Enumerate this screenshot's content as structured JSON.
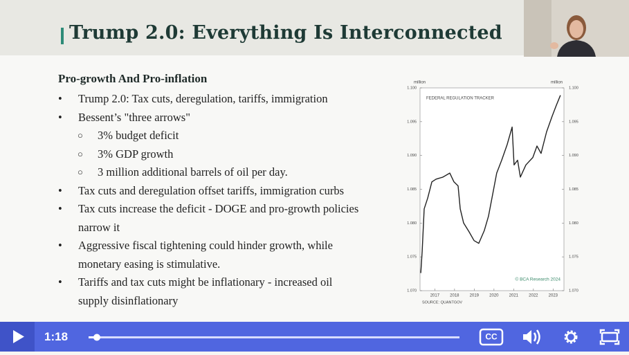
{
  "slide": {
    "title": "Trump 2.0: Everything Is Interconnected",
    "heading": "Pro-growth And Pro-inflation",
    "bullets": [
      {
        "level": 0,
        "text": "Trump 2.0: Tax cuts, deregulation, tariffs, immigration"
      },
      {
        "level": 0,
        "text": "Bessent’s \"three arrows\""
      },
      {
        "level": 1,
        "text": "3% budget deficit"
      },
      {
        "level": 1,
        "text": "3% GDP growth"
      },
      {
        "level": 1,
        "text": "3 million additional barrels of oil per day."
      },
      {
        "level": 0,
        "text": "Tax cuts and deregulation offset tariffs, immigration curbs"
      },
      {
        "level": 0,
        "text": "Tax cuts increase the deficit  - DOGE and pro-growth policies narrow it"
      },
      {
        "level": 0,
        "text": "Aggressive fiscal tightening could hinder growth, while monetary easing is stimulative."
      },
      {
        "level": 0,
        "text": "Tariffs and tax cuts might be inflationary - increased oil supply disinflationary"
      }
    ]
  },
  "chart_data": {
    "type": "line",
    "title": "FEDERAL REGULATION TRACKER",
    "y_unit_left": "million",
    "y_unit_right": "million",
    "source": "SOURCE: QUANTGOV",
    "credit": "© BCA Research 2024",
    "xlim": [
      2016.25,
      2023.55
    ],
    "xticks": [
      2017,
      2018,
      2019,
      2020,
      2021,
      2022,
      2023
    ],
    "ylim": [
      1.07,
      1.1
    ],
    "yticks": [
      {
        "value": 1.07,
        "label": "1.070"
      },
      {
        "value": 1.075,
        "label": "1.075"
      },
      {
        "value": 1.08,
        "label": "1.080"
      },
      {
        "value": 1.085,
        "label": "1.085"
      },
      {
        "value": 1.09,
        "label": "1.090"
      },
      {
        "value": 1.095,
        "label": "1.095"
      },
      {
        "value": 1.1,
        "label": "1.100"
      }
    ],
    "y2lim": [
      1.07,
      1.1
    ],
    "y2ticks": [
      {
        "value": 1.07,
        "label": "1.070"
      },
      {
        "value": 1.075,
        "label": "1.075"
      },
      {
        "value": 1.08,
        "label": "1.080"
      },
      {
        "value": 1.085,
        "label": "1.085"
      },
      {
        "value": 1.09,
        "label": "1.090"
      },
      {
        "value": 1.095,
        "label": "1.095"
      },
      {
        "value": 1.1,
        "label": "1.100"
      }
    ],
    "color": "#222222",
    "x": [
      2016.29,
      2016.36,
      2016.46,
      2016.64,
      2016.85,
      2017.06,
      2017.41,
      2017.76,
      2017.97,
      2018.18,
      2018.29,
      2018.46,
      2018.74,
      2018.99,
      2019.23,
      2019.51,
      2019.72,
      2019.93,
      2020.14,
      2020.39,
      2020.67,
      2020.92,
      2021.02,
      2021.2,
      2021.34,
      2021.62,
      2021.97,
      2022.18,
      2022.39,
      2022.67,
      2022.95,
      2023.16,
      2023.37
    ],
    "values": [
      1.0726,
      1.0758,
      1.0821,
      1.0837,
      1.0861,
      1.0865,
      1.0868,
      1.0874,
      1.0861,
      1.0855,
      1.0821,
      1.08,
      1.0787,
      1.0774,
      1.077,
      1.0789,
      1.081,
      1.0842,
      1.0874,
      1.0893,
      1.0916,
      1.0942,
      1.0886,
      1.0893,
      1.0868,
      1.0886,
      1.0897,
      1.0914,
      1.0903,
      1.0935,
      1.0958,
      1.0974,
      1.0989
    ]
  },
  "player": {
    "time": "1:18"
  }
}
